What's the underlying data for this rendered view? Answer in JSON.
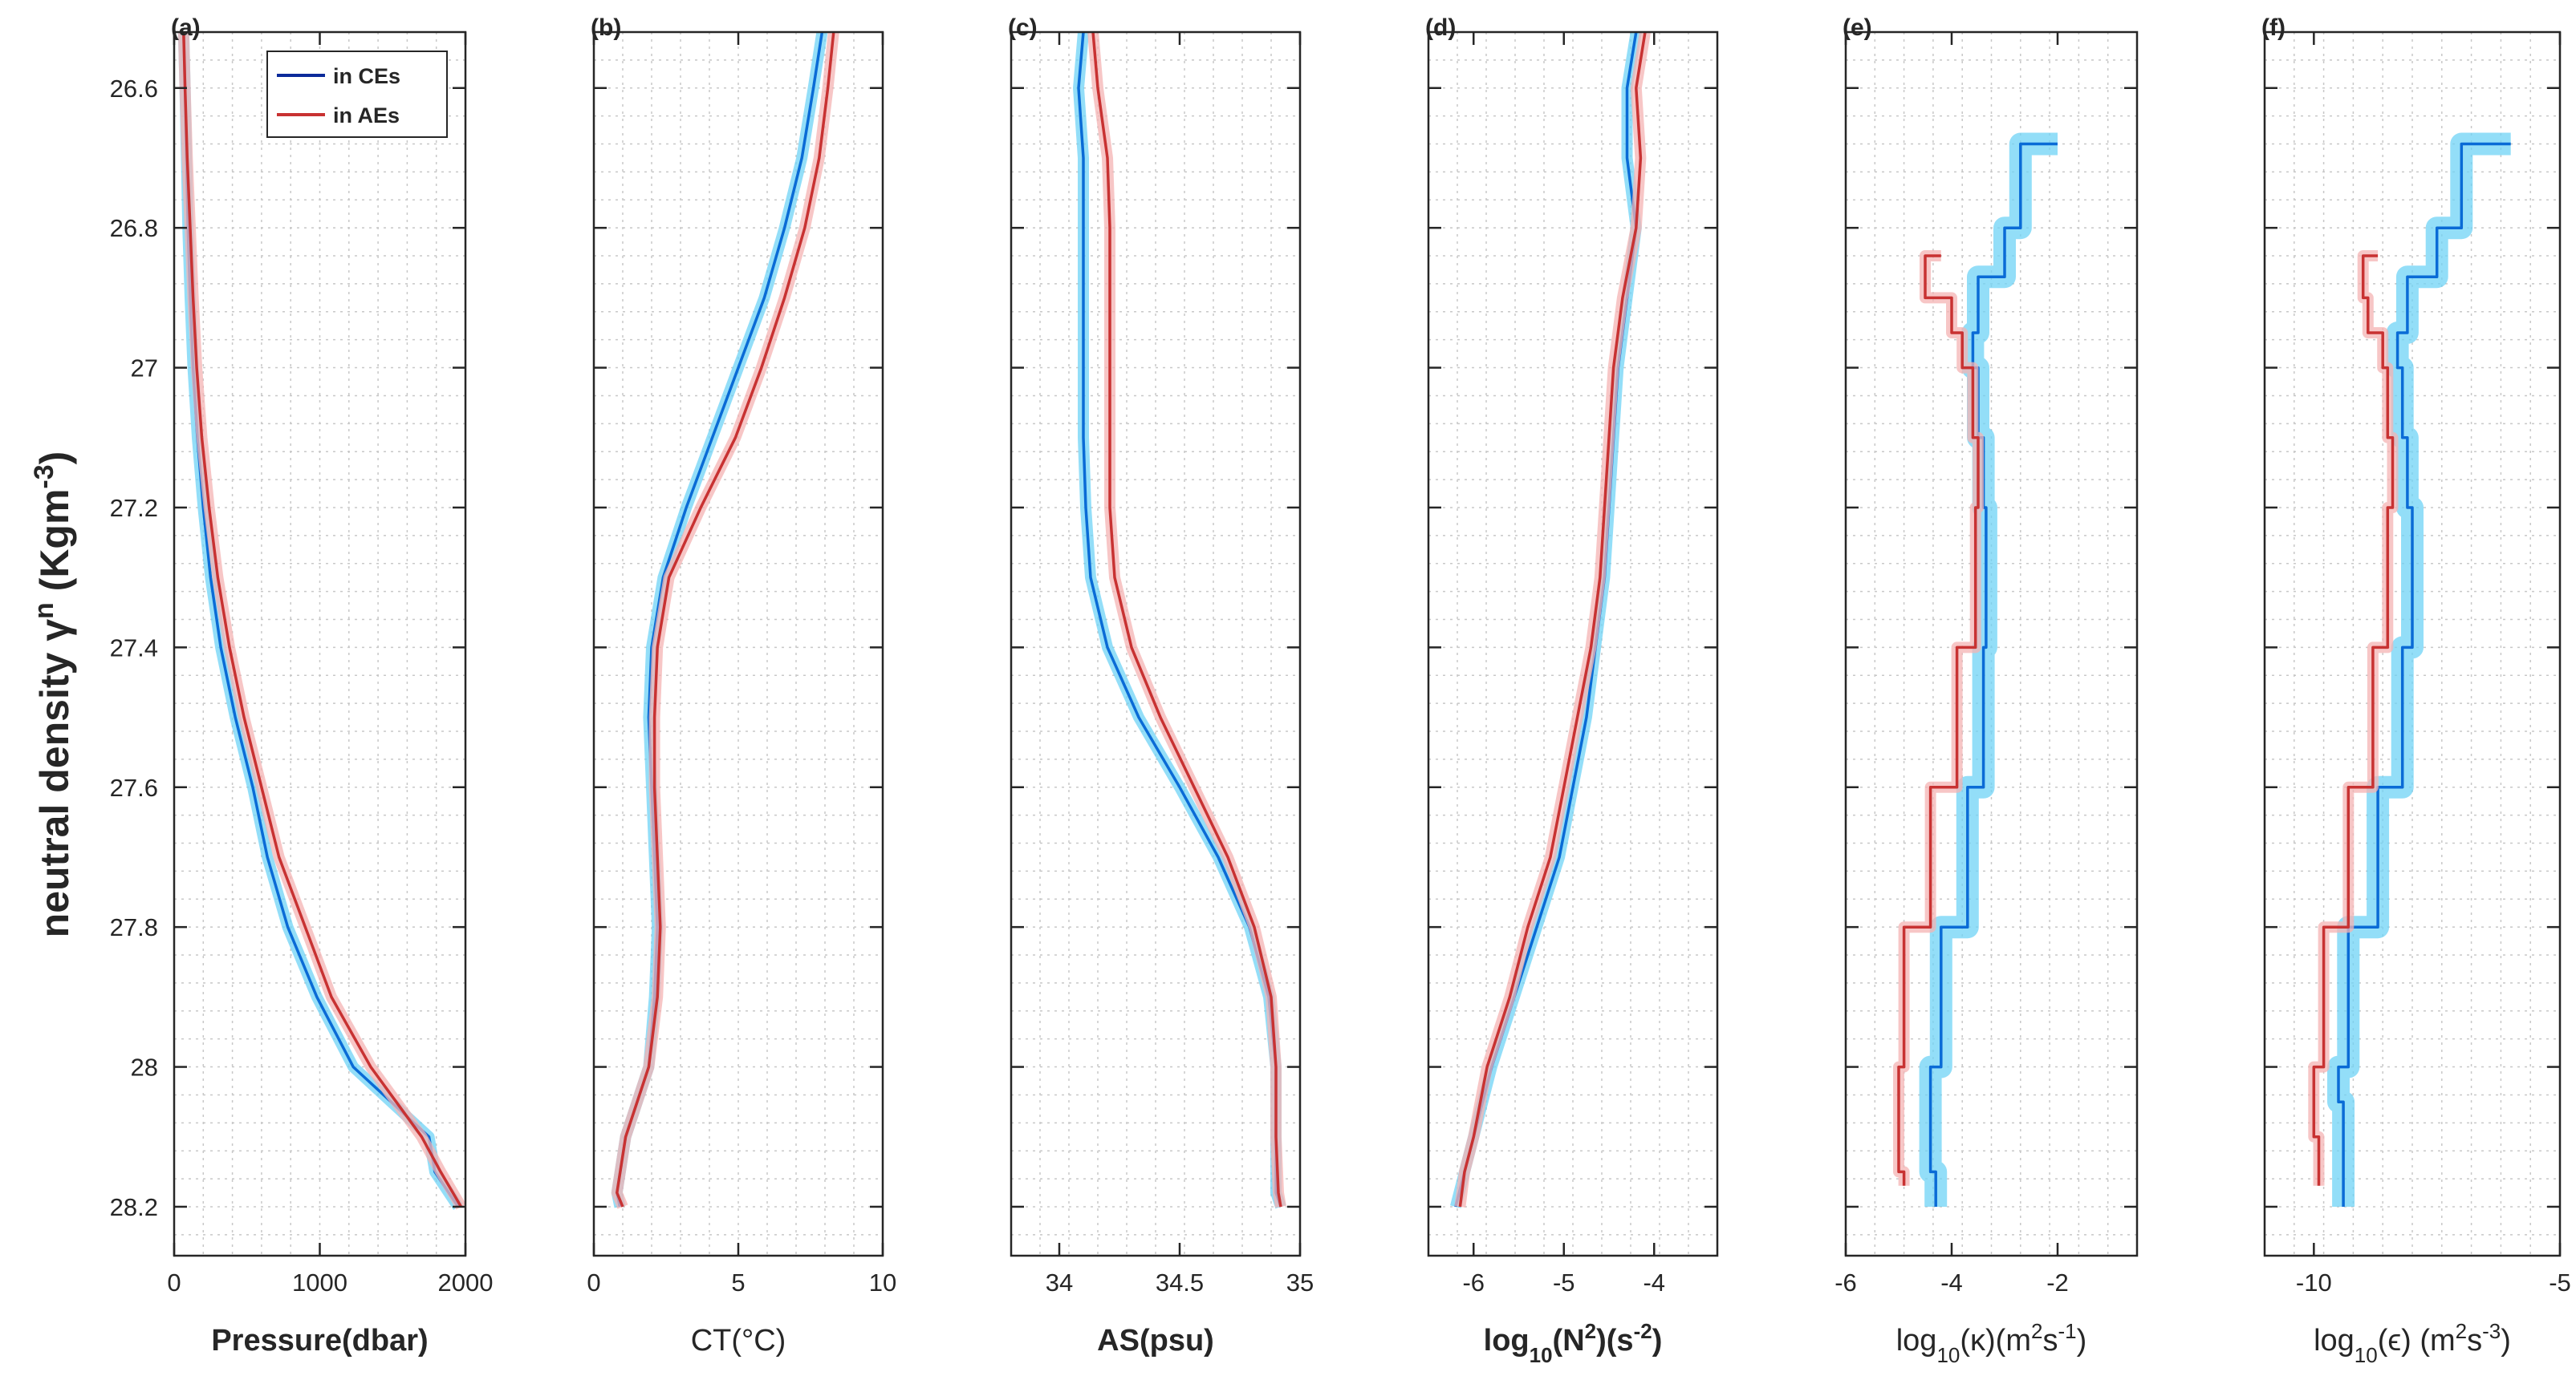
{
  "figure": {
    "ylabel": {
      "main": "neutral density γ",
      "sup": "n",
      "unit": " (Kgm",
      "unit_sup": "-3",
      "unit_close": ")"
    },
    "yticks": [
      "26.6",
      "26.8",
      "27",
      "27.2",
      "27.4",
      "27.6",
      "27.8",
      "28",
      "28.2"
    ],
    "ylim": [
      26.52,
      28.27
    ],
    "legend": {
      "ce_label": "in CEs",
      "ae_label": "in AEs"
    },
    "colors": {
      "ce": "#0b2a9a",
      "ce_line": "#0a6bd6",
      "ae": "#c83232",
      "ce_shade": "#6fd3f5",
      "ae_shade": "#f4b3b3"
    }
  },
  "chart_data": [
    {
      "type": "line",
      "letter": "(a)",
      "xlabel": "Pressure(dbar)",
      "xlabel_bold": true,
      "xlim": [
        0,
        2000
      ],
      "xticks": [
        "0",
        "1000",
        "2000"
      ],
      "xtick_values": [
        0,
        1000,
        2000
      ],
      "y": [
        26.52,
        26.6,
        26.7,
        26.8,
        26.9,
        27.0,
        27.1,
        27.2,
        27.3,
        27.4,
        27.5,
        27.6,
        27.7,
        27.8,
        27.9,
        28.0,
        28.1,
        28.15,
        28.2
      ],
      "series": [
        {
          "name": "in CEs",
          "values": [
            65,
            75,
            85,
            95,
            110,
            130,
            160,
            200,
            250,
            320,
            420,
            540,
            640,
            780,
            980,
            1230,
            1750,
            1790,
            1950
          ]
        },
        {
          "name": "in AEs",
          "values": [
            65,
            75,
            90,
            110,
            130,
            155,
            190,
            240,
            300,
            380,
            480,
            600,
            720,
            900,
            1080,
            1350,
            1700,
            1830,
            1970
          ]
        }
      ]
    },
    {
      "type": "line",
      "letter": "(b)",
      "xlabel": "CT(°C)",
      "xlabel_bold": false,
      "xlim": [
        0,
        10
      ],
      "xticks": [
        "0",
        "5",
        "10"
      ],
      "xtick_values": [
        0,
        5,
        10
      ],
      "y": [
        26.52,
        26.6,
        26.7,
        26.8,
        26.9,
        27.0,
        27.1,
        27.2,
        27.3,
        27.4,
        27.5,
        27.6,
        27.7,
        27.8,
        27.9,
        28.0,
        28.1,
        28.18,
        28.2
      ],
      "series": [
        {
          "name": "in CEs",
          "values": [
            7.9,
            7.6,
            7.2,
            6.6,
            5.9,
            5.0,
            4.1,
            3.2,
            2.4,
            2.0,
            1.9,
            2.0,
            2.1,
            2.2,
            2.1,
            1.9,
            1.1,
            0.8,
            0.9
          ]
        },
        {
          "name": "in AEs",
          "values": [
            8.3,
            8.1,
            7.8,
            7.3,
            6.6,
            5.8,
            4.9,
            3.7,
            2.6,
            2.2,
            2.1,
            2.1,
            2.2,
            2.3,
            2.2,
            1.9,
            1.1,
            0.8,
            1.0
          ]
        }
      ]
    },
    {
      "type": "line",
      "letter": "(c)",
      "xlabel": "AS(psu)",
      "xlabel_bold": true,
      "xlim": [
        33.8,
        35
      ],
      "xticks": [
        "34",
        "34.5",
        "35"
      ],
      "xtick_values": [
        34,
        34.5,
        35
      ],
      "y": [
        26.52,
        26.6,
        26.7,
        26.8,
        26.9,
        27.0,
        27.1,
        27.2,
        27.3,
        27.4,
        27.5,
        27.6,
        27.7,
        27.8,
        27.9,
        28.0,
        28.1,
        28.18,
        28.2
      ],
      "series": [
        {
          "name": "in CEs",
          "values": [
            34.1,
            34.08,
            34.1,
            34.1,
            34.1,
            34.1,
            34.1,
            34.11,
            34.13,
            34.2,
            34.33,
            34.5,
            34.66,
            34.79,
            34.87,
            34.9,
            34.9,
            34.9,
            34.92
          ]
        },
        {
          "name": "in AEs",
          "values": [
            34.14,
            34.16,
            34.2,
            34.21,
            34.21,
            34.21,
            34.21,
            34.21,
            34.23,
            34.3,
            34.42,
            34.56,
            34.7,
            34.81,
            34.88,
            34.9,
            34.9,
            34.91,
            34.92
          ]
        }
      ]
    },
    {
      "type": "line",
      "letter": "(d)",
      "xlabel": "log",
      "xlabel_sub": "10",
      "xlabel_rest": "(N",
      "xlabel_sup": "2",
      "xlabel_rest2": ")(s",
      "xlabel_sup2": "-2",
      "xlabel_end": ")",
      "xlabel_bold": true,
      "xlim": [
        -6.5,
        -3.3
      ],
      "xticks": [
        "-6",
        "-5",
        "-4"
      ],
      "xtick_values": [
        -6,
        -5,
        -4
      ],
      "y": [
        26.52,
        26.6,
        26.7,
        26.8,
        26.9,
        27.0,
        27.1,
        27.2,
        27.3,
        27.4,
        27.5,
        27.6,
        27.7,
        27.8,
        27.9,
        28.0,
        28.1,
        28.15,
        28.2
      ],
      "series": [
        {
          "name": "in CEs",
          "values": [
            -4.2,
            -4.3,
            -4.3,
            -4.2,
            -4.3,
            -4.4,
            -4.45,
            -4.5,
            -4.55,
            -4.65,
            -4.75,
            -4.9,
            -5.05,
            -5.3,
            -5.55,
            -5.8,
            -6.0,
            -6.1,
            -6.2
          ]
        },
        {
          "name": "in AEs",
          "values": [
            -4.1,
            -4.2,
            -4.15,
            -4.2,
            -4.35,
            -4.45,
            -4.5,
            -4.55,
            -4.6,
            -4.7,
            -4.85,
            -5.0,
            -5.15,
            -5.4,
            -5.6,
            -5.85,
            -6.0,
            -6.1,
            -6.15
          ]
        }
      ]
    },
    {
      "type": "line",
      "letter": "(e)",
      "xlabel": "log",
      "xlabel_sub": "10",
      "xlabel_rest": "(κ)(m",
      "xlabel_sup": "2",
      "xlabel_rest2": "s",
      "xlabel_sup2": "-1",
      "xlabel_end": ")",
      "xlabel_bold": false,
      "xlim": [
        -6,
        -0.5
      ],
      "xticks": [
        "-6",
        "-4",
        "-2"
      ],
      "xtick_values": [
        -6,
        -4,
        -2
      ],
      "series": [
        {
          "name": "in CEs",
          "y": [
            26.68,
            26.8,
            26.87,
            26.95,
            27.0,
            27.1,
            27.2,
            27.4,
            27.6,
            27.8,
            28.0,
            28.05,
            28.15,
            28.2
          ],
          "values": [
            -2.0,
            -2.7,
            -3.0,
            -3.5,
            -3.6,
            -3.5,
            -3.4,
            -3.35,
            -3.4,
            -3.7,
            -4.2,
            -4.4,
            -4.4,
            -4.3
          ]
        },
        {
          "name": "in AEs",
          "y": [
            26.84,
            26.9,
            26.95,
            27.0,
            27.1,
            27.2,
            27.4,
            27.6,
            27.8,
            28.0,
            28.1,
            28.15,
            28.17
          ],
          "values": [
            -4.2,
            -4.5,
            -4.0,
            -3.8,
            -3.6,
            -3.5,
            -3.55,
            -3.9,
            -4.4,
            -4.9,
            -5.0,
            -5.0,
            -4.9
          ]
        }
      ]
    },
    {
      "type": "line",
      "letter": "(f)",
      "xlabel": "log",
      "xlabel_sub": "10",
      "xlabel_rest": "(ϵ) (m",
      "xlabel_sup": "2",
      "xlabel_rest2": "s",
      "xlabel_sup2": "-3",
      "xlabel_end": ")",
      "xlabel_bold": false,
      "xlim": [
        -11,
        -5
      ],
      "xticks": [
        "-10",
        "-5"
      ],
      "xtick_values": [
        -10,
        -5
      ],
      "series": [
        {
          "name": "in CEs",
          "y": [
            26.68,
            26.8,
            26.87,
            26.95,
            27.0,
            27.1,
            27.2,
            27.4,
            27.6,
            27.8,
            28.0,
            28.05,
            28.15,
            28.2
          ],
          "values": [
            -6.0,
            -7.0,
            -7.5,
            -8.1,
            -8.3,
            -8.2,
            -8.1,
            -8.0,
            -8.2,
            -8.7,
            -9.3,
            -9.5,
            -9.4,
            -9.4
          ]
        },
        {
          "name": "in AEs",
          "y": [
            26.84,
            26.9,
            26.95,
            27.0,
            27.1,
            27.2,
            27.4,
            27.6,
            27.8,
            28.0,
            28.05,
            28.1,
            28.17
          ],
          "values": [
            -8.7,
            -9.0,
            -8.9,
            -8.6,
            -8.5,
            -8.4,
            -8.5,
            -8.8,
            -9.3,
            -9.8,
            -10.0,
            -10.0,
            -9.9
          ]
        }
      ]
    }
  ]
}
